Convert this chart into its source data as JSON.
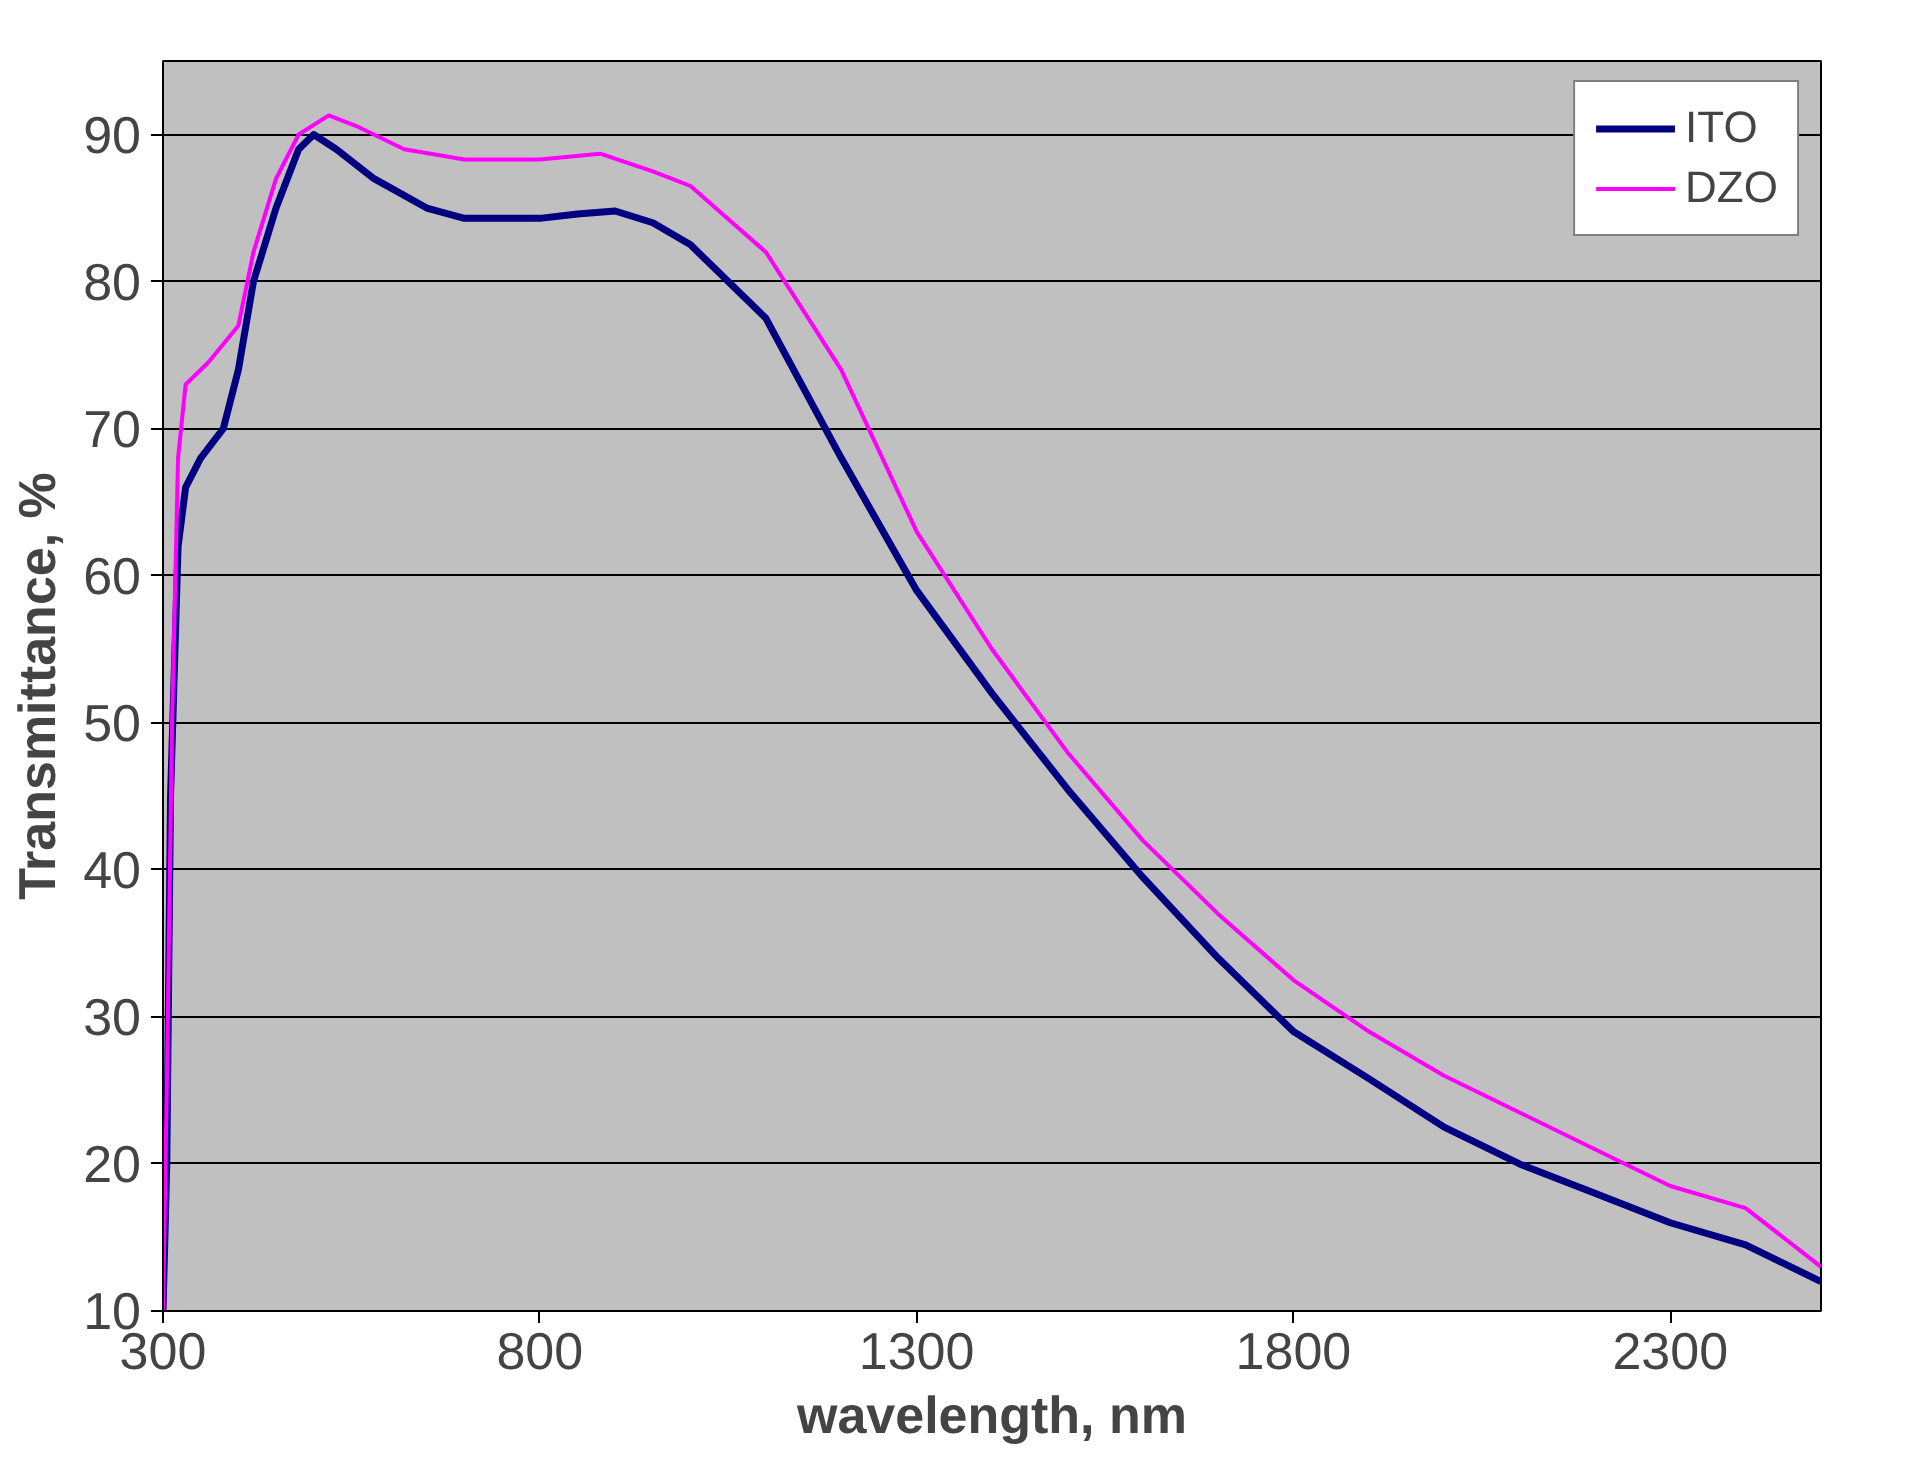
{
  "chart_data": {
    "type": "line",
    "xlabel": "wavelength, nm",
    "ylabel": "Transmittance, %",
    "xlim": [
      300,
      2500
    ],
    "ylim": [
      10,
      95
    ],
    "xticks": [
      300,
      800,
      1300,
      1800,
      2300
    ],
    "yticks": [
      10,
      20,
      30,
      40,
      50,
      60,
      70,
      80,
      90
    ],
    "grid": "y",
    "legend": "top right",
    "marker": "none",
    "line_style": "solid",
    "series": [
      {
        "name": "ITO",
        "color": "#000080",
        "x": [
          300,
          305,
          310,
          320,
          330,
          350,
          380,
          400,
          420,
          450,
          480,
          500,
          530,
          580,
          650,
          700,
          800,
          850,
          900,
          950,
          1000,
          1100,
          1200,
          1300,
          1400,
          1500,
          1600,
          1700,
          1800,
          1900,
          2000,
          2100,
          2200,
          2300,
          2400,
          2500
        ],
        "values": [
          10,
          20,
          45,
          62,
          66,
          68,
          70,
          74,
          80,
          85,
          89,
          90,
          89,
          87,
          85,
          84.3,
          84.3,
          84.6,
          84.8,
          84,
          82.5,
          77.5,
          68,
          59,
          52,
          45.5,
          39.5,
          34,
          29,
          25.8,
          22.5,
          20,
          18,
          16,
          14.5,
          12
        ]
      },
      {
        "name": "DZO",
        "color": "#ff00ff",
        "x": [
          300,
          305,
          312,
          320,
          330,
          360,
          400,
          420,
          450,
          480,
          520,
          560,
          620,
          700,
          800,
          880,
          950,
          1000,
          1100,
          1200,
          1300,
          1400,
          1500,
          1600,
          1700,
          1800,
          1900,
          2000,
          2100,
          2200,
          2300,
          2400,
          2500
        ],
        "values": [
          10,
          25,
          50,
          68,
          73,
          74.5,
          77,
          82,
          87,
          90,
          91.3,
          90.5,
          89,
          88.3,
          88.3,
          88.7,
          87.5,
          86.5,
          82,
          74,
          63,
          55,
          48,
          42,
          37,
          32.5,
          29,
          26,
          23.5,
          21,
          18.5,
          17,
          13
        ]
      }
    ]
  }
}
